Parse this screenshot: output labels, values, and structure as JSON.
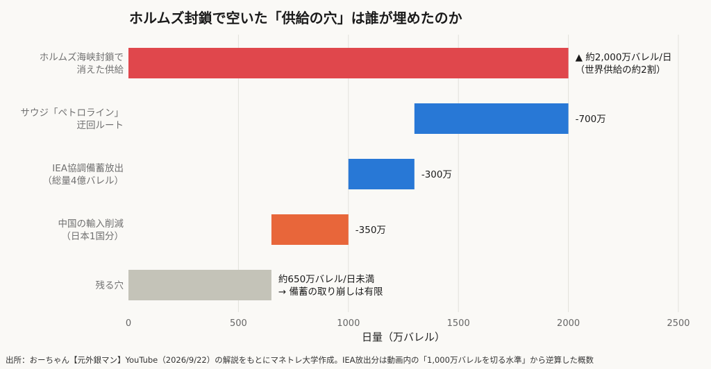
{
  "chart_data": {
    "type": "bar",
    "orientation": "horizontal-waterfall",
    "title": "ホルムズ封鎖で空いた「供給の穴」は誰が埋めたのか",
    "xlabel": "日量（万バレル）",
    "xlim": [
      0,
      2500
    ],
    "xticks": [
      0,
      500,
      1000,
      1500,
      2000,
      2500
    ],
    "grid": true,
    "bars": [
      {
        "label": [
          "ホルムズ海峡封鎖で",
          "消えた供給"
        ],
        "start": 0,
        "end": 2000,
        "color": "#e0474c",
        "annotation": [
          "▲ 約2,000万バレル/日",
          "（世界供給の約2割）"
        ]
      },
      {
        "label": [
          "サウジ「ペトロライン」",
          "迂回ルート"
        ],
        "start": 1300,
        "end": 2000,
        "color": "#2878d6",
        "annotation": [
          "-700万"
        ]
      },
      {
        "label": [
          "IEA協調備蓄放出",
          "（総量4億バレル）"
        ],
        "start": 1000,
        "end": 1300,
        "color": "#2878d6",
        "annotation": [
          "-300万"
        ]
      },
      {
        "label": [
          "中国の輸入削減",
          "（日本1国分）"
        ],
        "start": 650,
        "end": 1000,
        "color": "#e8663a",
        "annotation": [
          "-350万"
        ]
      },
      {
        "label": [
          "残る穴"
        ],
        "start": 0,
        "end": 650,
        "color": "#c4c3b8",
        "annotation": [
          "約650万バレル/日未満",
          "→ 備蓄の取り崩しは有限"
        ]
      }
    ]
  },
  "source_note": "出所：おーちゃん【元外銀マン】YouTube（2026/9/22）の解説をもとにマネトレ大学作成。IEA放出分は動画内の「1,000万バレルを切る水準」から逆算した概数"
}
